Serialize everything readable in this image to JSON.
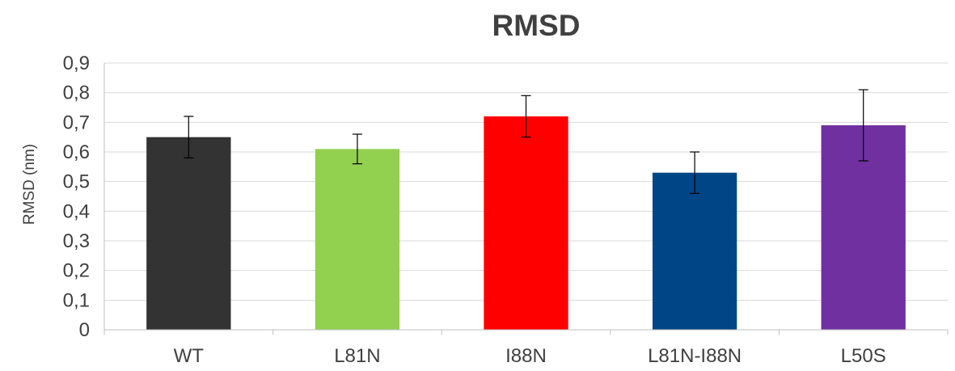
{
  "chart_data": {
    "type": "bar",
    "title": "RMSD",
    "ylabel": "RMSD (nm)",
    "xlabel": "",
    "categories": [
      "WT",
      "L81N",
      "I88N",
      "L81N-I88N",
      "L50S"
    ],
    "values": [
      0.65,
      0.61,
      0.72,
      0.53,
      0.69
    ],
    "error_low": [
      0.58,
      0.56,
      0.65,
      0.46,
      0.57
    ],
    "error_high": [
      0.72,
      0.66,
      0.79,
      0.6,
      0.81
    ],
    "colors": [
      "#333333",
      "#92d050",
      "#ff0000",
      "#004586",
      "#7030a0"
    ],
    "ylim": [
      0,
      0.9
    ],
    "yticks": [
      "0",
      "0,1",
      "0,2",
      "0,3",
      "0,4",
      "0,5",
      "0,6",
      "0,7",
      "0,8",
      "0,9"
    ],
    "grid": true,
    "legend": "none"
  }
}
